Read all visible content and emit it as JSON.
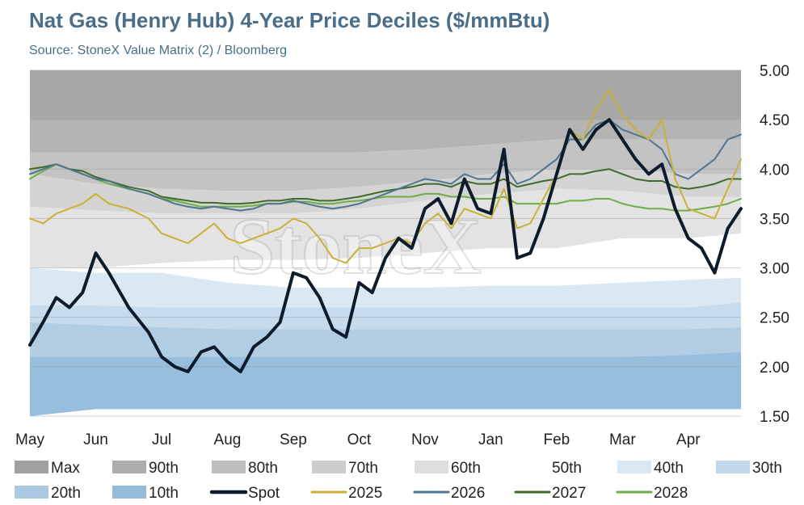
{
  "title": "Nat Gas (Henry Hub) 4-Year Price Deciles ($/mmBtu)",
  "subtitle": "Source: StoneX Value Matrix (2) / Bloomberg",
  "watermark": "StoneX",
  "chart_data": {
    "type": "area",
    "x_ticks": [
      "May",
      "Jun",
      "Jul",
      "Aug",
      "Sep",
      "Oct",
      "Nov",
      "Jan",
      "Feb",
      "Mar",
      "Apr"
    ],
    "ylim": [
      1.5,
      5.0
    ],
    "y_ticks": [
      1.5,
      2.0,
      2.5,
      3.0,
      3.5,
      4.0,
      4.5,
      5.0
    ],
    "y_tick_labels": [
      "1.50",
      "2.00",
      "2.50",
      "3.00",
      "3.50",
      "4.00",
      "4.50",
      "5.00"
    ],
    "y_axis_side": "right",
    "decile_bands": [
      {
        "name": "Max",
        "color": "#a7a7a7",
        "lower": [
          4.5,
          4.5,
          4.5,
          4.5,
          4.5,
          4.5,
          4.5,
          4.5,
          4.5,
          4.5,
          4.5,
          4.5
        ],
        "upper": [
          5.0,
          5.0,
          5.0,
          5.0,
          5.0,
          5.0,
          5.0,
          5.0,
          5.0,
          5.0,
          5.0,
          5.0
        ]
      },
      {
        "name": "90th",
        "color": "#b4b4b4",
        "lower": [
          4.17,
          4.17,
          4.17,
          4.17,
          4.17,
          4.17,
          4.2,
          4.25,
          4.3,
          4.3,
          4.3,
          4.3
        ],
        "upper": [
          4.5,
          4.5,
          4.5,
          4.5,
          4.5,
          4.5,
          4.5,
          4.5,
          4.5,
          4.5,
          4.5,
          4.5
        ]
      },
      {
        "name": "80th",
        "color": "#c3c3c3",
        "lower": [
          3.95,
          3.85,
          3.8,
          3.78,
          3.78,
          3.82,
          3.88,
          3.95,
          4.0,
          4.0,
          3.95,
          3.95
        ],
        "upper": [
          4.17,
          4.17,
          4.17,
          4.17,
          4.17,
          4.17,
          4.2,
          4.25,
          4.3,
          4.3,
          4.3,
          4.3
        ]
      },
      {
        "name": "70th",
        "color": "#d4d4d4",
        "lower": [
          3.62,
          3.58,
          3.55,
          3.55,
          3.55,
          3.6,
          3.68,
          3.75,
          3.8,
          3.78,
          3.72,
          3.72
        ],
        "upper": [
          3.95,
          3.85,
          3.8,
          3.78,
          3.78,
          3.82,
          3.88,
          3.95,
          4.0,
          4.0,
          3.95,
          3.95
        ]
      },
      {
        "name": "60th",
        "color": "#e3e3e3",
        "lower": [
          3.0,
          3.0,
          3.05,
          3.08,
          3.08,
          3.1,
          3.15,
          3.2,
          3.2,
          3.3,
          3.3,
          3.35
        ],
        "upper": [
          3.62,
          3.58,
          3.55,
          3.55,
          3.55,
          3.6,
          3.68,
          3.75,
          3.8,
          3.78,
          3.72,
          3.72
        ]
      },
      {
        "name": "50th",
        "color": "#ffffff",
        "lower": [
          3.0,
          2.95,
          2.95,
          2.85,
          2.8,
          2.8,
          2.8,
          2.82,
          2.82,
          2.85,
          2.88,
          2.9
        ],
        "upper": [
          3.0,
          3.0,
          3.05,
          3.08,
          3.08,
          3.1,
          3.15,
          3.2,
          3.2,
          3.3,
          3.3,
          3.35
        ]
      },
      {
        "name": "40th",
        "color": "#dae8f3",
        "lower": [
          2.62,
          2.62,
          2.6,
          2.6,
          2.6,
          2.6,
          2.6,
          2.6,
          2.6,
          2.6,
          2.6,
          2.65
        ],
        "upper": [
          3.0,
          2.95,
          2.95,
          2.85,
          2.8,
          2.8,
          2.8,
          2.82,
          2.82,
          2.85,
          2.88,
          2.9
        ]
      },
      {
        "name": "30th",
        "color": "#c6dbec",
        "lower": [
          2.45,
          2.42,
          2.4,
          2.38,
          2.38,
          2.38,
          2.38,
          2.38,
          2.38,
          2.38,
          2.38,
          2.4
        ],
        "upper": [
          2.62,
          2.62,
          2.6,
          2.6,
          2.6,
          2.6,
          2.6,
          2.6,
          2.6,
          2.6,
          2.6,
          2.65
        ]
      },
      {
        "name": "20th",
        "color": "#b1cde4",
        "lower": [
          2.1,
          2.1,
          2.1,
          2.1,
          2.1,
          2.1,
          2.1,
          2.1,
          2.1,
          2.1,
          2.12,
          2.15
        ],
        "upper": [
          2.45,
          2.42,
          2.4,
          2.38,
          2.38,
          2.38,
          2.38,
          2.38,
          2.38,
          2.38,
          2.38,
          2.4
        ]
      },
      {
        "name": "10th",
        "color": "#98bedd",
        "lower": [
          1.5,
          1.57,
          1.57,
          1.57,
          1.57,
          1.57,
          1.57,
          1.57,
          1.57,
          1.57,
          1.57,
          1.57
        ],
        "upper": [
          2.1,
          2.1,
          2.1,
          2.1,
          2.1,
          2.1,
          2.1,
          2.1,
          2.1,
          2.1,
          2.12,
          2.15
        ]
      }
    ],
    "band_x": [
      0,
      1,
      2,
      3,
      4,
      5,
      6,
      7,
      8,
      9,
      10,
      10.8
    ],
    "series": [
      {
        "name": "Spot",
        "color": "#0d1b2a",
        "width": 4,
        "x": [
          0,
          0.2,
          0.4,
          0.6,
          0.8,
          1.0,
          1.2,
          1.5,
          1.8,
          2.0,
          2.2,
          2.4,
          2.6,
          2.8,
          3.0,
          3.2,
          3.4,
          3.6,
          3.8,
          4.0,
          4.2,
          4.4,
          4.6,
          4.8,
          5.0,
          5.2,
          5.4,
          5.6,
          5.8,
          6.0,
          6.2,
          6.4,
          6.6,
          6.8,
          7.0,
          7.2,
          7.4,
          7.6,
          7.8,
          8.0,
          8.2,
          8.4,
          8.6,
          8.8,
          9.0,
          9.2,
          9.4,
          9.6,
          9.8,
          10.0,
          10.2,
          10.4,
          10.6,
          10.8
        ],
        "y": [
          2.22,
          2.45,
          2.7,
          2.6,
          2.75,
          3.15,
          2.95,
          2.6,
          2.35,
          2.1,
          2.0,
          1.95,
          2.15,
          2.2,
          2.05,
          1.95,
          2.2,
          2.3,
          2.45,
          2.95,
          2.9,
          2.7,
          2.38,
          2.3,
          2.85,
          2.75,
          3.1,
          3.3,
          3.2,
          3.6,
          3.7,
          3.45,
          3.9,
          3.6,
          3.55,
          4.2,
          3.1,
          3.15,
          3.5,
          3.95,
          4.4,
          4.2,
          4.4,
          4.5,
          4.3,
          4.1,
          3.95,
          4.05,
          3.6,
          3.3,
          3.2,
          2.95,
          3.4,
          3.6
        ]
      },
      {
        "name": "2025",
        "color": "#c9b037",
        "width": 2,
        "x": [
          0,
          0.2,
          0.4,
          0.6,
          0.8,
          1.0,
          1.2,
          1.5,
          1.8,
          2.0,
          2.2,
          2.4,
          2.6,
          2.8,
          3.0,
          3.2,
          3.4,
          3.6,
          3.8,
          4.0,
          4.2,
          4.4,
          4.6,
          4.8,
          5.0,
          5.2,
          5.4,
          5.6,
          5.8,
          6.0,
          6.2,
          6.4,
          6.6,
          6.8,
          7.0,
          7.2,
          7.4,
          7.6,
          7.8,
          8.0,
          8.2,
          8.4,
          8.6,
          8.8,
          9.0,
          9.2,
          9.4,
          9.6,
          9.8,
          10.0,
          10.2,
          10.4,
          10.6,
          10.8
        ],
        "y": [
          3.5,
          3.45,
          3.55,
          3.6,
          3.65,
          3.75,
          3.65,
          3.6,
          3.5,
          3.35,
          3.3,
          3.25,
          3.35,
          3.45,
          3.3,
          3.25,
          3.3,
          3.35,
          3.4,
          3.5,
          3.45,
          3.3,
          3.1,
          3.05,
          3.2,
          3.2,
          3.25,
          3.3,
          3.25,
          3.45,
          3.55,
          3.4,
          3.6,
          3.55,
          3.5,
          3.8,
          3.4,
          3.45,
          3.7,
          3.95,
          4.4,
          4.3,
          4.6,
          4.8,
          4.55,
          4.4,
          4.3,
          4.5,
          3.9,
          3.6,
          3.55,
          3.5,
          3.8,
          4.1
        ]
      },
      {
        "name": "2026",
        "color": "#4f7590",
        "width": 2,
        "x": [
          0,
          0.2,
          0.4,
          0.6,
          0.8,
          1.0,
          1.2,
          1.5,
          1.8,
          2.0,
          2.2,
          2.4,
          2.6,
          2.8,
          3.0,
          3.2,
          3.4,
          3.6,
          3.8,
          4.0,
          4.2,
          4.4,
          4.6,
          4.8,
          5.0,
          5.2,
          5.4,
          5.6,
          5.8,
          6.0,
          6.2,
          6.4,
          6.6,
          6.8,
          7.0,
          7.2,
          7.4,
          7.6,
          7.8,
          8.0,
          8.2,
          8.4,
          8.6,
          8.8,
          9.0,
          9.2,
          9.4,
          9.6,
          9.8,
          10.0,
          10.2,
          10.4,
          10.6,
          10.8
        ],
        "y": [
          3.95,
          4.0,
          4.05,
          4.0,
          3.95,
          3.9,
          3.88,
          3.8,
          3.75,
          3.7,
          3.65,
          3.62,
          3.6,
          3.62,
          3.6,
          3.58,
          3.6,
          3.65,
          3.65,
          3.68,
          3.65,
          3.62,
          3.6,
          3.62,
          3.65,
          3.7,
          3.75,
          3.8,
          3.85,
          3.9,
          3.88,
          3.85,
          3.95,
          3.9,
          3.9,
          4.05,
          3.85,
          3.9,
          4.0,
          4.1,
          4.3,
          4.3,
          4.45,
          4.5,
          4.4,
          4.35,
          4.3,
          4.2,
          3.95,
          3.9,
          4.0,
          4.1,
          4.3,
          4.35
        ]
      },
      {
        "name": "2027",
        "color": "#3f6b2a",
        "width": 2,
        "x": [
          0,
          0.2,
          0.4,
          0.6,
          0.8,
          1.0,
          1.2,
          1.5,
          1.8,
          2.0,
          2.2,
          2.4,
          2.6,
          2.8,
          3.0,
          3.2,
          3.4,
          3.6,
          3.8,
          4.0,
          4.2,
          4.4,
          4.6,
          4.8,
          5.0,
          5.2,
          5.4,
          5.6,
          5.8,
          6.0,
          6.2,
          6.4,
          6.6,
          6.8,
          7.0,
          7.2,
          7.4,
          7.6,
          7.8,
          8.0,
          8.2,
          8.4,
          8.6,
          8.8,
          9.0,
          9.2,
          9.4,
          9.6,
          9.8,
          10.0,
          10.2,
          10.4,
          10.6,
          10.8
        ],
        "y": [
          4.0,
          4.02,
          4.05,
          4.0,
          3.98,
          3.92,
          3.88,
          3.82,
          3.78,
          3.72,
          3.7,
          3.68,
          3.66,
          3.66,
          3.65,
          3.65,
          3.66,
          3.68,
          3.68,
          3.7,
          3.7,
          3.68,
          3.68,
          3.7,
          3.72,
          3.75,
          3.78,
          3.8,
          3.82,
          3.85,
          3.85,
          3.82,
          3.88,
          3.85,
          3.85,
          3.9,
          3.82,
          3.85,
          3.88,
          3.9,
          3.95,
          3.95,
          3.98,
          4.0,
          3.95,
          3.9,
          3.88,
          3.88,
          3.82,
          3.8,
          3.82,
          3.85,
          3.9,
          3.9
        ]
      },
      {
        "name": "2028",
        "color": "#6fae45",
        "width": 2,
        "x": [
          0,
          0.2,
          0.4,
          0.6,
          0.8,
          1.0,
          1.2,
          1.5,
          1.8,
          2.0,
          2.2,
          2.4,
          2.6,
          2.8,
          3.0,
          3.2,
          3.4,
          3.6,
          3.8,
          4.0,
          4.2,
          4.4,
          4.6,
          4.8,
          5.0,
          5.2,
          5.4,
          5.6,
          5.8,
          6.0,
          6.2,
          6.4,
          6.6,
          6.8,
          7.0,
          7.2,
          7.4,
          7.6,
          7.8,
          8.0,
          8.2,
          8.4,
          8.6,
          8.8,
          9.0,
          9.2,
          9.4,
          9.6,
          9.8,
          10.0,
          10.2,
          10.4,
          10.6,
          10.8
        ],
        "y": [
          3.9,
          3.98,
          4.05,
          4.0,
          3.95,
          3.9,
          3.85,
          3.8,
          3.75,
          3.7,
          3.68,
          3.65,
          3.62,
          3.62,
          3.62,
          3.62,
          3.63,
          3.65,
          3.65,
          3.67,
          3.67,
          3.65,
          3.65,
          3.67,
          3.68,
          3.7,
          3.72,
          3.72,
          3.72,
          3.75,
          3.75,
          3.72,
          3.72,
          3.7,
          3.7,
          3.72,
          3.65,
          3.65,
          3.65,
          3.65,
          3.68,
          3.68,
          3.7,
          3.7,
          3.65,
          3.62,
          3.6,
          3.6,
          3.58,
          3.58,
          3.6,
          3.62,
          3.65,
          3.7
        ]
      }
    ],
    "legend_placement": "bottom",
    "legend": [
      {
        "label": "Max",
        "kind": "patch",
        "color": "#a0a0a0"
      },
      {
        "label": "90th",
        "kind": "patch",
        "color": "#adadad"
      },
      {
        "label": "80th",
        "kind": "patch",
        "color": "#bdbdbd"
      },
      {
        "label": "70th",
        "kind": "patch",
        "color": "#cdcdcd"
      },
      {
        "label": "60th",
        "kind": "patch",
        "color": "#dedede"
      },
      {
        "label": "50th",
        "kind": "patch",
        "color": "#ffffff"
      },
      {
        "label": "40th",
        "kind": "patch",
        "color": "#dae8f3"
      },
      {
        "label": "30th",
        "kind": "patch",
        "color": "#c1d8ea"
      },
      {
        "label": "20th",
        "kind": "patch",
        "color": "#acc9e2"
      },
      {
        "label": "10th",
        "kind": "patch",
        "color": "#95bbdb"
      },
      {
        "label": "Spot",
        "kind": "line",
        "color": "#0d1b2a"
      },
      {
        "label": "2025",
        "kind": "line",
        "color": "#c9b037"
      },
      {
        "label": "2026",
        "kind": "line",
        "color": "#4f7590"
      },
      {
        "label": "2027",
        "kind": "line",
        "color": "#3f6b2a"
      },
      {
        "label": "2028",
        "kind": "line",
        "color": "#6fae45"
      }
    ]
  }
}
